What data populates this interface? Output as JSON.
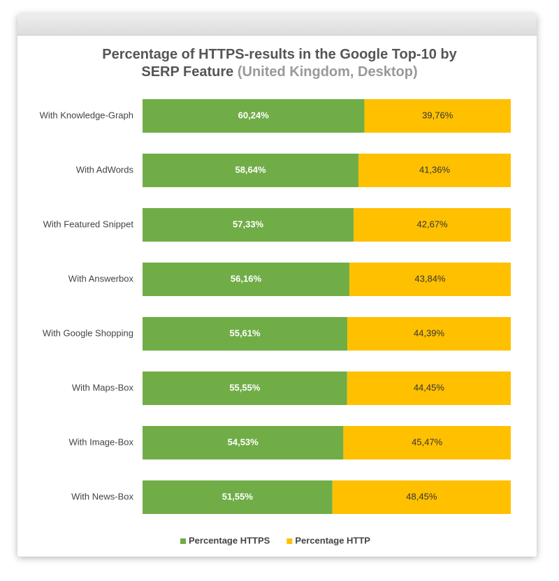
{
  "chart_data": {
    "type": "stacked-bar-horizontal",
    "title": "Percentage of HTTPS-results in the Google Top-10 by SERP Feature",
    "subtitle": "(United Kingdom, Desktop)",
    "categories": [
      "With Knowledge-Graph",
      "With AdWords",
      "With Featured Snippet",
      "With Answerbox",
      "With Google Shopping",
      "With Maps-Box",
      "With Image-Box",
      "With News-Box"
    ],
    "series": [
      {
        "name": "Percentage HTTPS",
        "color": "#70ad47",
        "values": [
          60.24,
          58.64,
          57.33,
          56.16,
          55.61,
          55.55,
          54.53,
          51.55
        ],
        "value_labels": [
          "60,24%",
          "58,64%",
          "57,33%",
          "56,16%",
          "55,61%",
          "55,55%",
          "54,53%",
          "51,55%"
        ]
      },
      {
        "name": "Percentage HTTP",
        "color": "#ffc000",
        "values": [
          39.76,
          41.36,
          42.67,
          43.84,
          44.39,
          44.45,
          45.47,
          48.45
        ],
        "value_labels": [
          "39,76%",
          "41,36%",
          "42,67%",
          "43,84%",
          "44,39%",
          "44,45%",
          "45,47%",
          "48,45%"
        ]
      }
    ],
    "legend": "bottom"
  }
}
